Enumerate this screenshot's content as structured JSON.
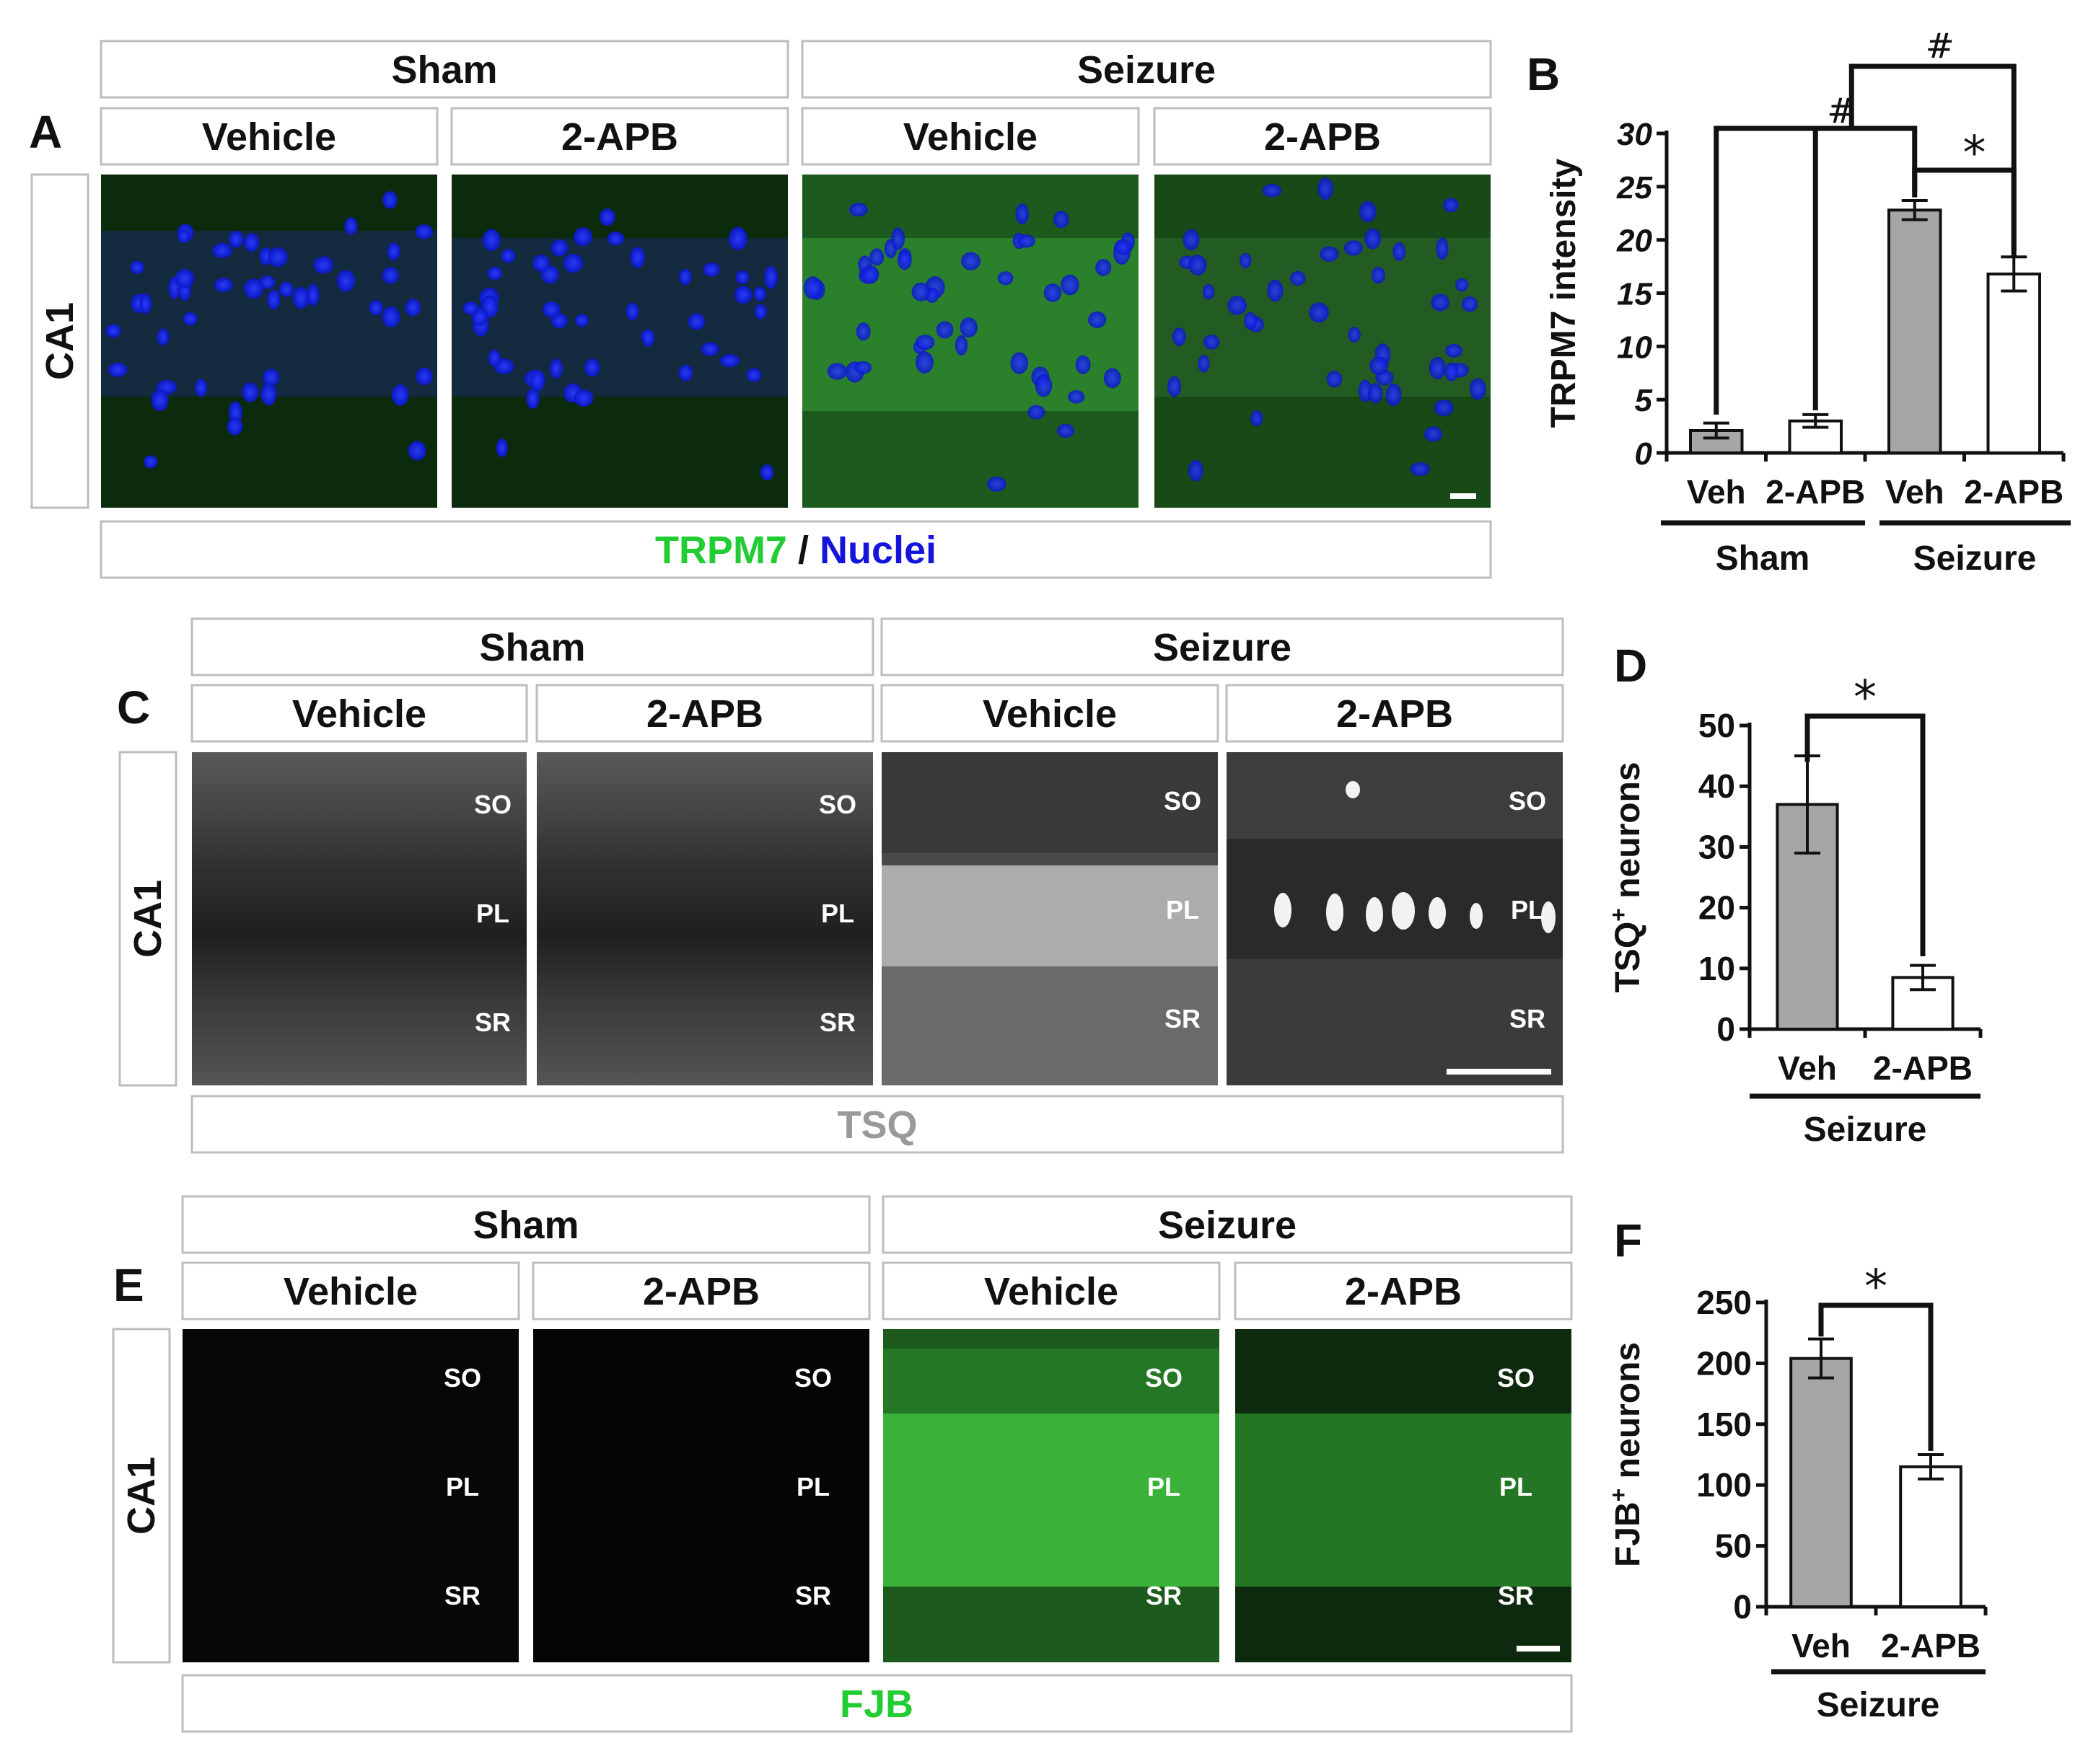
{
  "figure": {
    "labels": {
      "condition_sham": "Sham",
      "condition_seizure": "Seizure",
      "treatment_vehicle": "Vehicle",
      "treatment_2apb": "2-APB",
      "region": "CA1",
      "layer_so": "SO",
      "layer_pl": "PL",
      "layer_sr": "SR",
      "short_veh": "Veh",
      "short_2apb": "2-APB"
    },
    "panel_a": {
      "letter": "A",
      "stain_green": "TRPM7",
      "stain_sep": " / ",
      "stain_blue": "Nuclei",
      "green_color": "#22cc33",
      "blue_color": "#1414dd"
    },
    "panel_c": {
      "letter": "C",
      "stain": "TSQ",
      "stain_color": "#9a9a9a"
    },
    "panel_e": {
      "letter": "E",
      "stain": "FJB",
      "stain_color": "#22cc33"
    },
    "panel_b": {
      "letter": "B",
      "sig_hash": "#",
      "sig_star": "*"
    },
    "panel_d": {
      "letter": "D",
      "sig_star": "*"
    },
    "panel_f": {
      "letter": "F",
      "sig_star": "*"
    }
  },
  "chart_data": [
    {
      "panel": "B",
      "type": "bar",
      "ylabel": "TRPM7 intensity",
      "categories": [
        "Veh",
        "2-APB",
        "Veh",
        "2-APB"
      ],
      "groups": [
        "Sham",
        "Sham",
        "Seizure",
        "Seizure"
      ],
      "values": [
        2.1,
        3.0,
        22.8,
        16.8
      ],
      "errors": [
        0.7,
        0.6,
        0.9,
        1.6
      ],
      "bar_colors": [
        "#a6a6a6",
        "#ffffff",
        "#a6a6a6",
        "#ffffff"
      ],
      "ylim": [
        0,
        30
      ],
      "yticks": [
        0,
        5,
        10,
        15,
        20,
        25,
        30
      ],
      "significance": [
        "#",
        "#",
        "*"
      ]
    },
    {
      "panel": "D",
      "type": "bar",
      "ylabel": "TSQ",
      "ylabel_sup": "+",
      "ylabel_rest": " neurons",
      "categories": [
        "Veh",
        "2-APB"
      ],
      "group": "Seizure",
      "values": [
        37,
        8.5
      ],
      "errors": [
        8,
        2
      ],
      "bar_colors": [
        "#a6a6a6",
        "#ffffff"
      ],
      "ylim": [
        0,
        50
      ],
      "yticks": [
        0,
        10,
        20,
        30,
        40,
        50
      ],
      "significance": [
        "*"
      ]
    },
    {
      "panel": "F",
      "type": "bar",
      "ylabel": "FJB",
      "ylabel_sup": "+",
      "ylabel_rest": " neurons",
      "categories": [
        "Veh",
        "2-APB"
      ],
      "group": "Seizure",
      "values": [
        204,
        115
      ],
      "errors": [
        16,
        10
      ],
      "bar_colors": [
        "#a6a6a6",
        "#ffffff"
      ],
      "ylim": [
        0,
        250
      ],
      "yticks": [
        0,
        50,
        100,
        150,
        200,
        250
      ],
      "significance": [
        "*"
      ]
    }
  ]
}
